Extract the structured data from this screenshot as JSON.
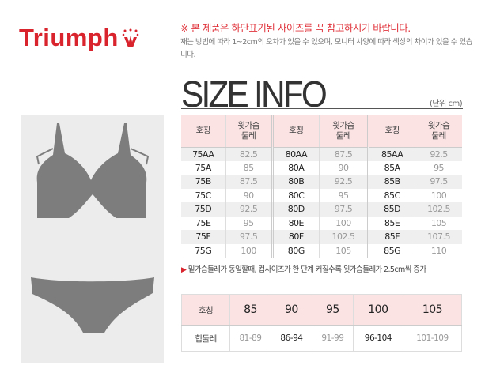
{
  "brand": {
    "logo_text": "Triumph",
    "color": "#d9232d"
  },
  "notice": "※ 본 제품은 하단표기된 사이즈를 꼭 참고하시기 바랍니다.",
  "sub_text": "재는 방법에 따라 1~2cm의 오차가 있을 수 있으며, 모니터 사양에 따라 색상의 차이가 있을 수 있습니다.",
  "title": "SIZE INFO",
  "unit": "(단위 cm)",
  "bra_table": {
    "headers": [
      "호칭",
      "윗가슴 둘레",
      "호칭",
      "윗가슴 둘레",
      "호칭",
      "윗가슴 둘레"
    ],
    "rows": [
      [
        "75AA",
        "82.5",
        "80AA",
        "87.5",
        "85AA",
        "92.5"
      ],
      [
        "75A",
        "85",
        "80A",
        "90",
        "85A",
        "95"
      ],
      [
        "75B",
        "87.5",
        "80B",
        "92.5",
        "85B",
        "97.5"
      ],
      [
        "75C",
        "90",
        "80C",
        "95",
        "85C",
        "100"
      ],
      [
        "75D",
        "92.5",
        "80D",
        "97.5",
        "85D",
        "102.5"
      ],
      [
        "75E",
        "95",
        "80E",
        "100",
        "85E",
        "105"
      ],
      [
        "75F",
        "97.5",
        "80F",
        "102.5",
        "85F",
        "107.5"
      ],
      [
        "75G",
        "100",
        "80G",
        "105",
        "85G",
        "110"
      ]
    ]
  },
  "note": "밑가슴둘레가 동일할때, 컵사이즈가 한 단계 커질수록 윗가슴둘레가 2.5cm씩 증가",
  "panty_table": {
    "header_label": "호칭",
    "sizes": [
      "85",
      "90",
      "95",
      "100",
      "105"
    ],
    "row_label": "힙둘레",
    "values": [
      "81-89",
      "86-94",
      "91-99",
      "96-104",
      "101-109"
    ]
  }
}
